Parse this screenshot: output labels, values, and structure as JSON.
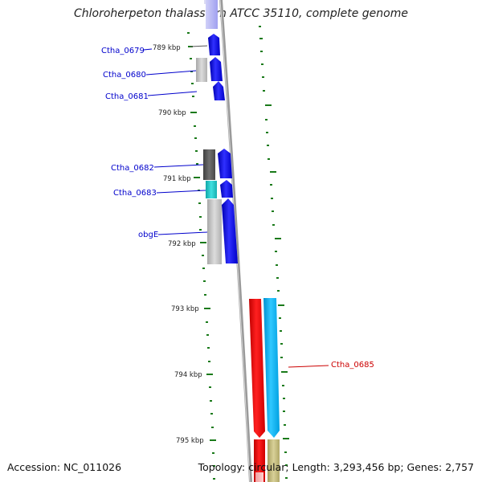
{
  "title": "Chloroherpeton thalassium ATCC 35110, complete genome",
  "footer": {
    "accession": "Accession: NC_011026",
    "summary": "Topology: circular; Length: 3,293,456 bp; Genes: 2,757"
  },
  "axis_ticks": [
    "789 kbp",
    "790 kbp",
    "791 kbp",
    "792 kbp",
    "793 kbp",
    "794 kbp",
    "795 kbp"
  ],
  "gene_labels": [
    {
      "text": "Ctha_0679",
      "color": "#0000cc"
    },
    {
      "text": "Ctha_0680",
      "color": "#0000cc"
    },
    {
      "text": "Ctha_0681",
      "color": "#0000cc"
    },
    {
      "text": "Ctha_0682",
      "color": "#0000cc"
    },
    {
      "text": "Ctha_0683",
      "color": "#0000cc"
    },
    {
      "text": "obgE",
      "color": "#0000cc"
    },
    {
      "text": "Ctha_0685",
      "color": "#cc0000"
    }
  ],
  "colors": {
    "forward_cds": "#0000ff",
    "reverse_cds": "#00b0f0",
    "rna_gene": "#ff0000",
    "backbone": "#808080",
    "tick_mark": "#1a7a1a",
    "cog_gray": "#c0c0c0",
    "cog_dark": "#555555",
    "cog_cyan": "#20c0c0",
    "cog_khaki": "#c8c080"
  }
}
